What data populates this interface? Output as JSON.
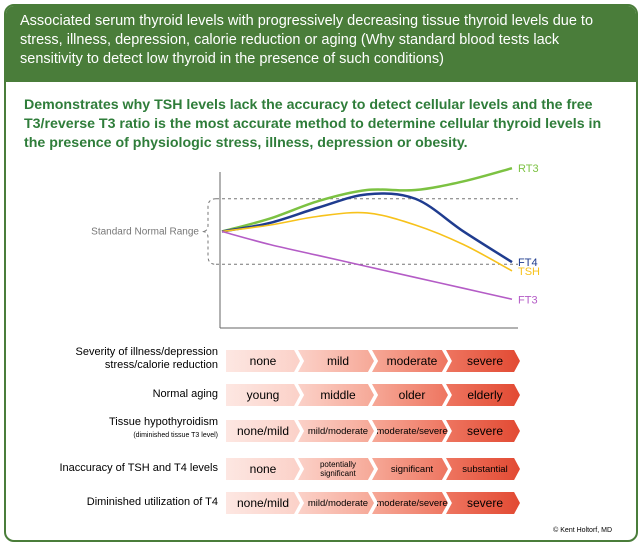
{
  "header": {
    "text": "Associated serum thyroid levels with progressively decreasing tissue thyroid levels due to stress, illness, depression, calorie reduction or aging (Why standard blood tests lack sensitivity to detect low thyroid in the presence of such conditions)"
  },
  "subtitle": "Demonstrates why TSH levels lack the accuracy to detect cellular levels and the free T3/reverse T3 ratio is the most accurate method to determine cellular thyroid levels in the presence of physiologic stress, illness, depression or obesity.",
  "chart_data": {
    "type": "line",
    "title": "",
    "annotation": "Standard Normal Range",
    "x": [
      0,
      1,
      2,
      3,
      4,
      5,
      6
    ],
    "normal_range": [
      20,
      80
    ],
    "ylim": [
      -20,
      110
    ],
    "series": [
      {
        "name": "RT3",
        "color": "#7cc242",
        "values": [
          50,
          62,
          78,
          88,
          88,
          96,
          108
        ]
      },
      {
        "name": "FT4",
        "color": "#1f3c8f",
        "values": [
          50,
          58,
          72,
          84,
          80,
          50,
          22
        ]
      },
      {
        "name": "TSH",
        "color": "#f7c21b",
        "values": [
          50,
          56,
          64,
          67,
          56,
          38,
          14
        ]
      },
      {
        "name": "FT3",
        "color": "#b45cc6",
        "values": [
          50,
          38,
          28,
          18,
          8,
          -2,
          -12
        ]
      }
    ]
  },
  "rows": [
    {
      "label": "Severity of illness/depression",
      "label2": "stress/calorie reduction",
      "cells": [
        "none",
        "mild",
        "moderate",
        "severe"
      ]
    },
    {
      "label": "Normal aging",
      "label2": "",
      "cells": [
        "young",
        "middle",
        "older",
        "elderly"
      ]
    },
    {
      "label": "Tissue hypothyroidism",
      "label2": "(diminished tissue T3 level)",
      "cells": [
        "none/mild",
        "mild/moderate",
        "moderate/severe",
        "severe"
      ]
    },
    {
      "label": "Inaccuracy of TSH and T4 levels",
      "label2": "",
      "cells": [
        "none",
        "potentially significant",
        "significant",
        "substantial"
      ]
    },
    {
      "label": "Diminished utilization of T4",
      "label2": "",
      "cells": [
        "none/mild",
        "mild/moderate",
        "moderate/severe",
        "severe"
      ]
    }
  ],
  "copyright": "© Kent Holtorf, MD"
}
